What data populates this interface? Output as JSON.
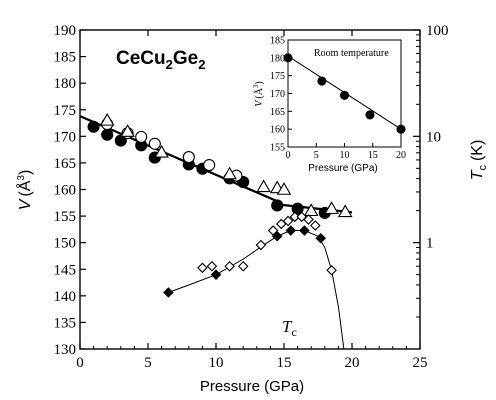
{
  "chart_data": [
    {
      "type": "scatter",
      "title": "CeCu₂Ge₂",
      "title_main": "CeCu",
      "title_sub1": "2",
      "title_mid": "Ge",
      "title_sub2": "2",
      "xlabel": "Pressure (GPa)",
      "ylabel_left": "V (Å³)",
      "ylabel_left_var": "V",
      "ylabel_left_unit": "(Å",
      "ylabel_left_exp": "3",
      "ylabel_left_close": ")",
      "ylabel_right": "Tc (K)",
      "ylabel_right_var": "T",
      "ylabel_right_sub": "c",
      "ylabel_right_unit": "(K)",
      "xlim": [
        0,
        25
      ],
      "ylim_left": [
        130,
        190
      ],
      "ylim_right": [
        0.1,
        100
      ],
      "right_scale": "log",
      "x_ticks": [
        "0",
        "5",
        "10",
        "15",
        "20",
        "25"
      ],
      "y_ticks_left": [
        "130",
        "135",
        "140",
        "145",
        "150",
        "155",
        "160",
        "165",
        "170",
        "175",
        "180",
        "185",
        "190"
      ],
      "y_ticks_right": [
        "1",
        "10",
        "100"
      ],
      "annotation": "T_c",
      "annotation_var": "T",
      "annotation_sub": "c",
      "series": [
        {
          "marker": "filled-circle",
          "axis": "left",
          "x": [
            1.0,
            2.0,
            3.0,
            4.5,
            5.5,
            8.0,
            9.0,
            11.0,
            12.0,
            14.5,
            16.0,
            18.0
          ],
          "y": [
            171.8,
            170.3,
            169.2,
            168.3,
            166.0,
            164.7,
            163.9,
            162.1,
            161.4,
            157.0,
            156.4,
            155.6
          ]
        },
        {
          "marker": "open-circle",
          "axis": "left",
          "x": [
            2.0,
            3.5,
            4.5,
            5.5,
            8.0,
            9.5,
            11.5
          ],
          "y": [
            172.3,
            170.6,
            169.9,
            168.6,
            166.1,
            164.6,
            162.6
          ]
        },
        {
          "marker": "open-triangle",
          "axis": "left",
          "x": [
            2.0,
            3.5,
            6.0,
            11.0,
            13.5,
            14.5,
            15.0,
            17.0,
            18.5,
            19.5
          ],
          "y": [
            173.0,
            170.9,
            167.0,
            162.9,
            160.5,
            160.3,
            160.0,
            156.0,
            156.4,
            155.8
          ]
        },
        {
          "marker": "filled-diamond",
          "axis": "right",
          "x": [
            6.5,
            10.0,
            14.5,
            15.5,
            16.5,
            17.7
          ],
          "y": [
            0.34,
            0.5,
            1.15,
            1.3,
            1.3,
            1.1
          ]
        },
        {
          "marker": "open-diamond",
          "axis": "right",
          "x": [
            9.0,
            9.7,
            11.0,
            12.0,
            13.3,
            14.2,
            14.8,
            15.3,
            15.8,
            16.3,
            16.8,
            17.3,
            18.5
          ],
          "y": [
            0.58,
            0.6,
            0.6,
            0.6,
            0.95,
            1.3,
            1.5,
            1.6,
            1.75,
            1.75,
            1.65,
            1.45,
            0.55
          ]
        }
      ],
      "fit_lines": [
        {
          "axis": "left",
          "x": [
            0,
            14.5
          ],
          "y": [
            173.8,
            157.8
          ]
        },
        {
          "axis": "left",
          "x": [
            14.5,
            20.0
          ],
          "y": [
            157.2,
            155.7
          ]
        }
      ],
      "tc_guides": [
        {
          "axis": "right",
          "x": [
            6.5,
            8.0,
            10.0,
            12.0,
            13.5,
            14.5,
            15.5,
            16.5,
            17.5,
            18.0,
            18.5,
            19.0,
            19.5,
            20.0
          ],
          "y": [
            0.34,
            0.4,
            0.5,
            0.7,
            0.95,
            1.15,
            1.3,
            1.3,
            1.15,
            0.9,
            0.55,
            0.25,
            0.08,
            0.03
          ]
        }
      ]
    },
    {
      "type": "scatter",
      "inset": true,
      "title": "Room temperature",
      "xlabel": "Pressure (GPa)",
      "ylabel": "V (Å³)",
      "ylabel_var": "V",
      "ylabel_unit": "(Å",
      "ylabel_exp": "3",
      "ylabel_close": ")",
      "xlim": [
        0,
        20
      ],
      "ylim": [
        155,
        185
      ],
      "x_ticks": [
        "0",
        "5",
        "10",
        "15",
        "20"
      ],
      "y_ticks": [
        "155",
        "160",
        "165",
        "170",
        "175",
        "180",
        "185"
      ],
      "series": [
        {
          "marker": "filled-circle",
          "x": [
            0,
            6,
            10,
            14.5,
            20
          ],
          "y": [
            180.0,
            173.5,
            169.5,
            164.0,
            160.0
          ]
        }
      ],
      "fit_lines": [
        {
          "x": [
            0,
            20
          ],
          "y": [
            180.5,
            160.0
          ]
        }
      ]
    }
  ]
}
